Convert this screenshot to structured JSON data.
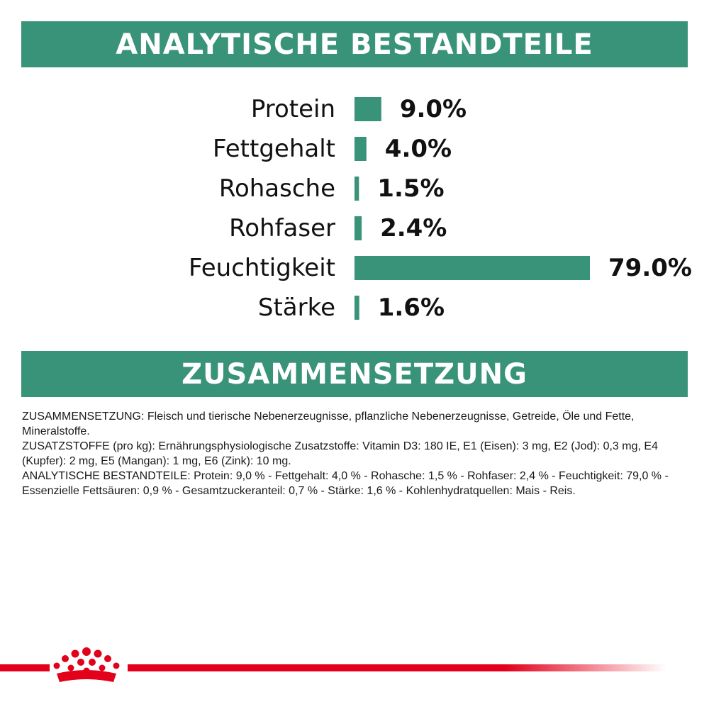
{
  "sections": {
    "analytical_title": "ANALYTISCHE BESTANDTEILE",
    "composition_title": "ZUSAMMENSETZUNG"
  },
  "colors": {
    "brand_green": "#389378",
    "brand_red": "#e2001a",
    "text": "#111111"
  },
  "chart_data": {
    "type": "bar",
    "orientation": "horizontal",
    "title": "ANALYTISCHE BESTANDTEILE",
    "categories": [
      "Protein",
      "Fettgehalt",
      "Rohasche",
      "Rohfaser",
      "Feuchtigkeit",
      "Stärke"
    ],
    "values": [
      9.0,
      4.0,
      1.5,
      2.4,
      79.0,
      1.6
    ],
    "value_labels": [
      "9.0%",
      "4.0%",
      "1.5%",
      "2.4%",
      "79.0%",
      "1.6%"
    ],
    "unit": "%",
    "bar_color": "#389378",
    "xlim": [
      0,
      79
    ],
    "grid": false,
    "legend": "none"
  },
  "composition": {
    "lines": [
      "ZUSAMMENSETZUNG: Fleisch und tierische Nebenerzeugnisse, pflanzliche Nebenerzeugnisse, Getreide, Öle und Fette, Mineralstoffe.",
      "ZUSATZSTOFFE (pro kg): Ernährungsphysiologische Zusatzstoffe: Vitamin D3: 180 IE, E1 (Eisen): 3 mg, E2 (Jod): 0,3 mg, E4 (Kupfer): 2 mg, E5 (Mangan): 1 mg, E6 (Zink): 10 mg.",
      "ANALYTISCHE BESTANDTEILE: Protein: 9,0 % - Fettgehalt: 4,0 % - Rohasche: 1,5 % - Rohfaser: 2,4 % - Feuchtigkeit: 79,0 % - Essenzielle Fettsäuren: 0,9 % - Gesamtzuckeranteil: 0,7 % - Stärke: 1,6 % - Kohlenhydratquellen: Mais - Reis."
    ]
  },
  "footer": {
    "logo_icon": "royal-canin-crown-icon"
  }
}
